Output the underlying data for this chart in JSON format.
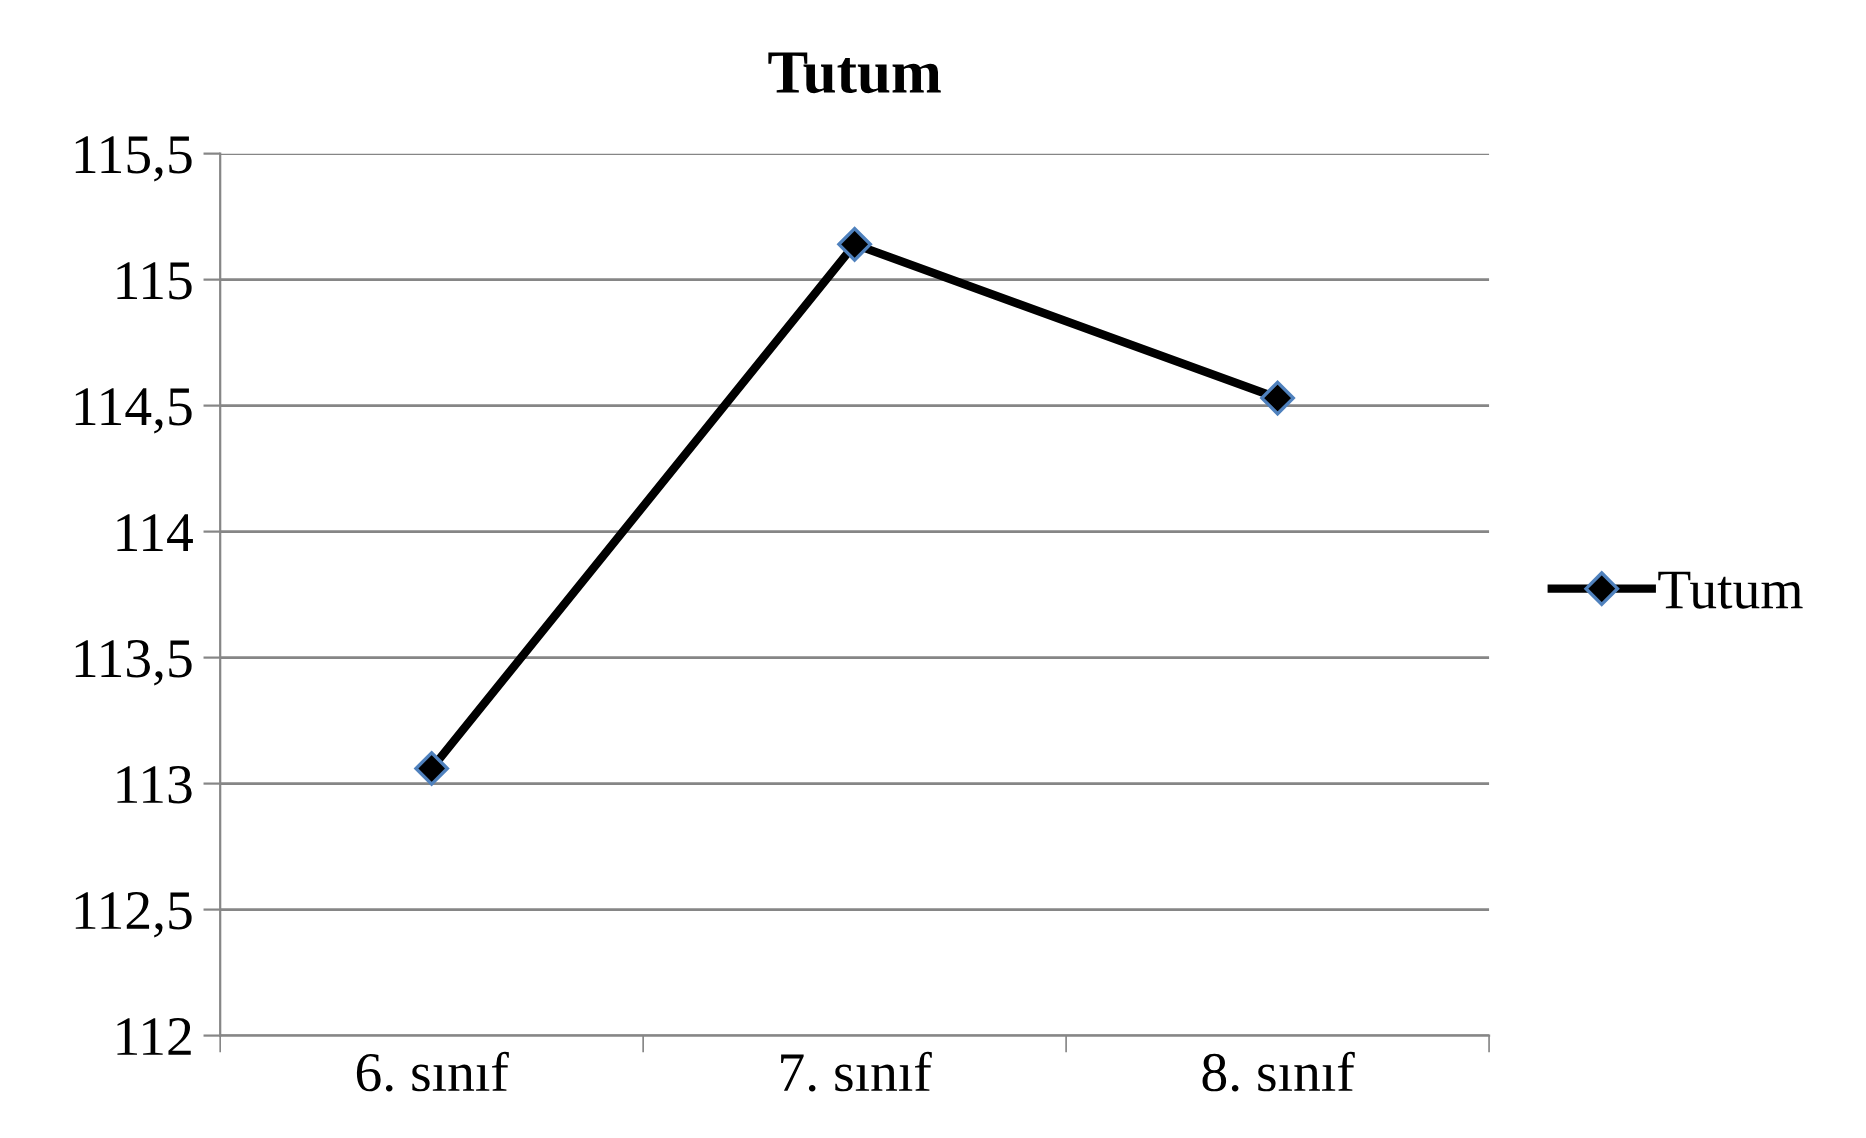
{
  "chart_data": {
    "type": "line",
    "title": "Tutum",
    "categories": [
      "6. sınıf",
      "7. sınıf",
      "8. sınıf"
    ],
    "series": [
      {
        "name": "Tutum",
        "color": "#000000",
        "values": [
          113.06,
          115.14,
          114.53
        ]
      }
    ],
    "ylim": [
      112,
      115.5
    ],
    "yticks": [
      {
        "value": 112,
        "label": "112"
      },
      {
        "value": 112.5,
        "label": "112,5"
      },
      {
        "value": 113,
        "label": "113"
      },
      {
        "value": 113.5,
        "label": "113,5"
      },
      {
        "value": 114,
        "label": "114"
      },
      {
        "value": 114.5,
        "label": "114,5"
      },
      {
        "value": 115,
        "label": "115"
      },
      {
        "value": 115.5,
        "label": "115,5"
      }
    ],
    "grid": "y",
    "legend": "right",
    "marker": "diamond",
    "line_style": "solid"
  }
}
